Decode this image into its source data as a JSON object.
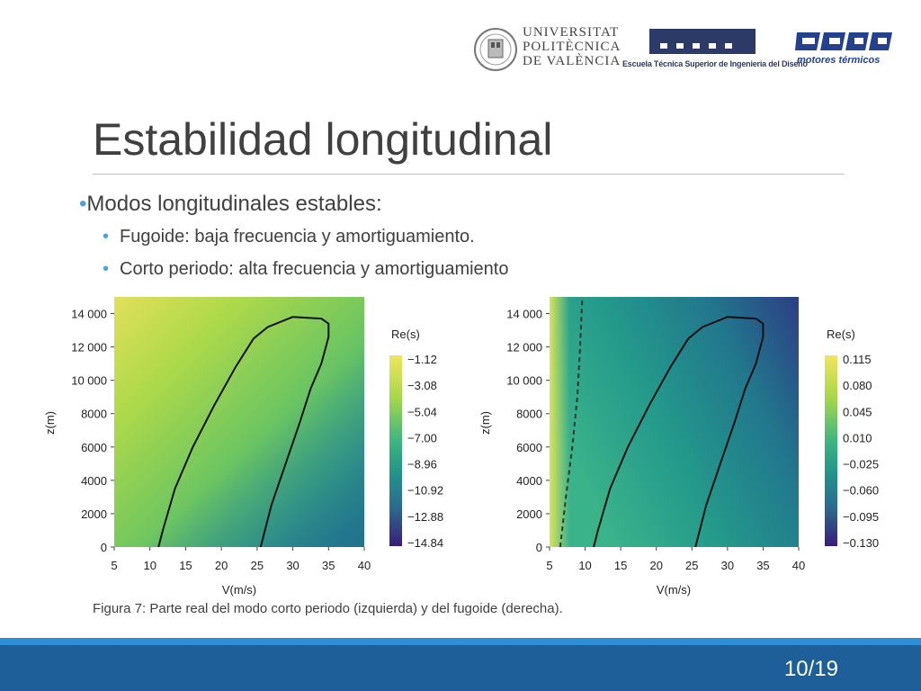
{
  "header": {
    "logo_upv_text": "UNIVERSITAT\nPOLITÈCNICA\nDE VALÈNCIA",
    "logo_etsid_text": "Escuela Técnica Superior de Ingeniería del Diseño",
    "logo_cmt_text": "motores térmicos"
  },
  "slide": {
    "title": "Estabilidad longitudinal",
    "bullet_main": "Modos longitudinales estables:",
    "bullet_1": "Fugoide: baja frecuencia y amortiguamiento.",
    "bullet_2": "Corto periodo: alta frecuencia y amortiguamiento",
    "caption": "Figura 7: Parte real del modo corto periodo (izquierda) y del fugoide (derecha).",
    "page": "10/19"
  },
  "colors": {
    "accent": "#4aa3df",
    "footer_light": "#2e8fd4",
    "footer_dark": "#1f5f99"
  },
  "chart_data": [
    {
      "type": "heatmap",
      "xlabel": "V(m/s)",
      "ylabel": "z(m)",
      "xlim": [
        5,
        40
      ],
      "ylim": [
        0,
        15000
      ],
      "xticks": [
        5,
        10,
        15,
        20,
        25,
        30,
        35,
        40
      ],
      "yticks": [
        0,
        2000,
        4000,
        6000,
        8000,
        10000,
        12000,
        14000
      ],
      "ytick_labels": [
        "0",
        "2000",
        "4000",
        "6000",
        "8000",
        "10 000",
        "12 000",
        "14 000"
      ],
      "legend_title": "Re(s)",
      "legend_values": [
        "−1.12",
        "−3.08",
        "−5.04",
        "−7.00",
        "−8.96",
        "−10.92",
        "−12.88",
        "−14.84"
      ],
      "envelope": [
        [
          11.2,
          0
        ],
        [
          11.8,
          1000
        ],
        [
          13.5,
          3500
        ],
        [
          16,
          6000
        ],
        [
          19,
          8500
        ],
        [
          22,
          10800
        ],
        [
          24.5,
          12500
        ],
        [
          26.5,
          13200
        ],
        [
          30,
          13800
        ],
        [
          34,
          13700
        ],
        [
          35,
          13400
        ],
        [
          35,
          12600
        ],
        [
          34,
          11000
        ],
        [
          32.5,
          9500
        ],
        [
          31,
          7500
        ],
        [
          29,
          5000
        ],
        [
          27,
          2500
        ],
        [
          25.5,
          0
        ]
      ],
      "dashed_line": []
    },
    {
      "type": "heatmap",
      "xlabel": "V(m/s)",
      "ylabel": "z(m)",
      "xlim": [
        5,
        40
      ],
      "ylim": [
        0,
        15000
      ],
      "xticks": [
        5,
        10,
        15,
        20,
        25,
        30,
        35,
        40
      ],
      "yticks": [
        0,
        2000,
        4000,
        6000,
        8000,
        10000,
        12000,
        14000
      ],
      "ytick_labels": [
        "0",
        "2000",
        "4000",
        "6000",
        "8000",
        "10 000",
        "12 000",
        "14 000"
      ],
      "legend_title": "Re(s)",
      "legend_values": [
        "0.115",
        "0.080",
        "0.045",
        "0.010",
        "−0.025",
        "−0.060",
        "−0.095",
        "−0.130"
      ],
      "envelope": [
        [
          11.2,
          0
        ],
        [
          11.8,
          1000
        ],
        [
          13.5,
          3500
        ],
        [
          16,
          6000
        ],
        [
          19,
          8500
        ],
        [
          22,
          10800
        ],
        [
          24.5,
          12500
        ],
        [
          26.5,
          13200
        ],
        [
          30,
          13800
        ],
        [
          34,
          13700
        ],
        [
          35,
          13400
        ],
        [
          35,
          12600
        ],
        [
          34,
          11000
        ],
        [
          32.5,
          9500
        ],
        [
          31,
          7500
        ],
        [
          29,
          5000
        ],
        [
          27,
          2500
        ],
        [
          25.5,
          0
        ]
      ],
      "dashed_line": [
        [
          6.5,
          0
        ],
        [
          7.3,
          3000
        ],
        [
          8.2,
          6000
        ],
        [
          8.9,
          9000
        ],
        [
          9.3,
          12000
        ],
        [
          9.6,
          15000
        ]
      ]
    }
  ]
}
